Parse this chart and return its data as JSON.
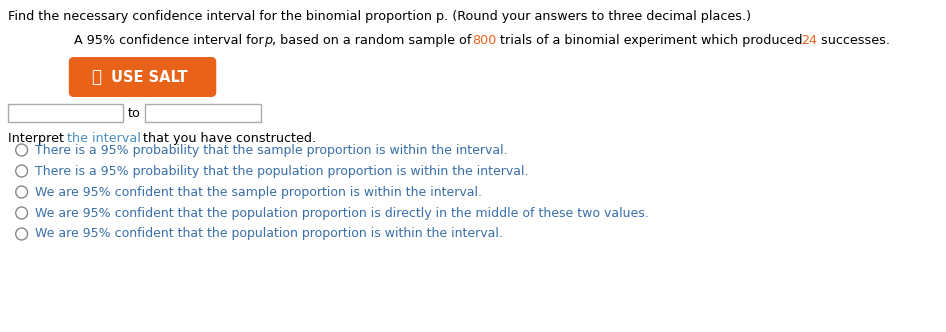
{
  "bg_color": "#ffffff",
  "title_line": "Find the necessary confidence interval for the binomial proportion p. (Round your answers to three decimal places.)",
  "title_color": "#000000",
  "subtitle_parts": [
    {
      "text": "A 95% confidence interval for ",
      "color": "#000000",
      "style": "normal"
    },
    {
      "text": "p",
      "color": "#000000",
      "style": "italic"
    },
    {
      "text": ", based on a random sample of ",
      "color": "#000000",
      "style": "normal"
    },
    {
      "text": "800",
      "color": "#e8621a",
      "style": "normal"
    },
    {
      "text": " trials of a binomial experiment which produced ",
      "color": "#000000",
      "style": "normal"
    },
    {
      "text": "24",
      "color": "#e8621a",
      "style": "normal"
    },
    {
      "text": " successes.",
      "color": "#000000",
      "style": "normal"
    }
  ],
  "button_text": "USE SALT",
  "button_color": "#e8621a",
  "button_text_color": "#ffffff",
  "to_text": "to",
  "interpret_parts": [
    {
      "text": "Interpret ",
      "color": "#000000"
    },
    {
      "text": "the interval",
      "color": "#4a8fc4"
    },
    {
      "text": " that you have constructed.",
      "color": "#000000"
    }
  ],
  "radio_options": [
    "There is a 95% probability that the sample proportion is within the interval.",
    "There is a 95% probability that the population proportion is within the interval.",
    "We are 95% confident that the sample proportion is within the interval.",
    "We are 95% confident that the population proportion is directly in the middle of these two values.",
    "We are 95% confident that the population proportion is within the interval."
  ],
  "radio_text_color": "#3a6fa8",
  "radio_circle_color": "#888888",
  "font_size": 9.2,
  "font_size_button": 10.5
}
